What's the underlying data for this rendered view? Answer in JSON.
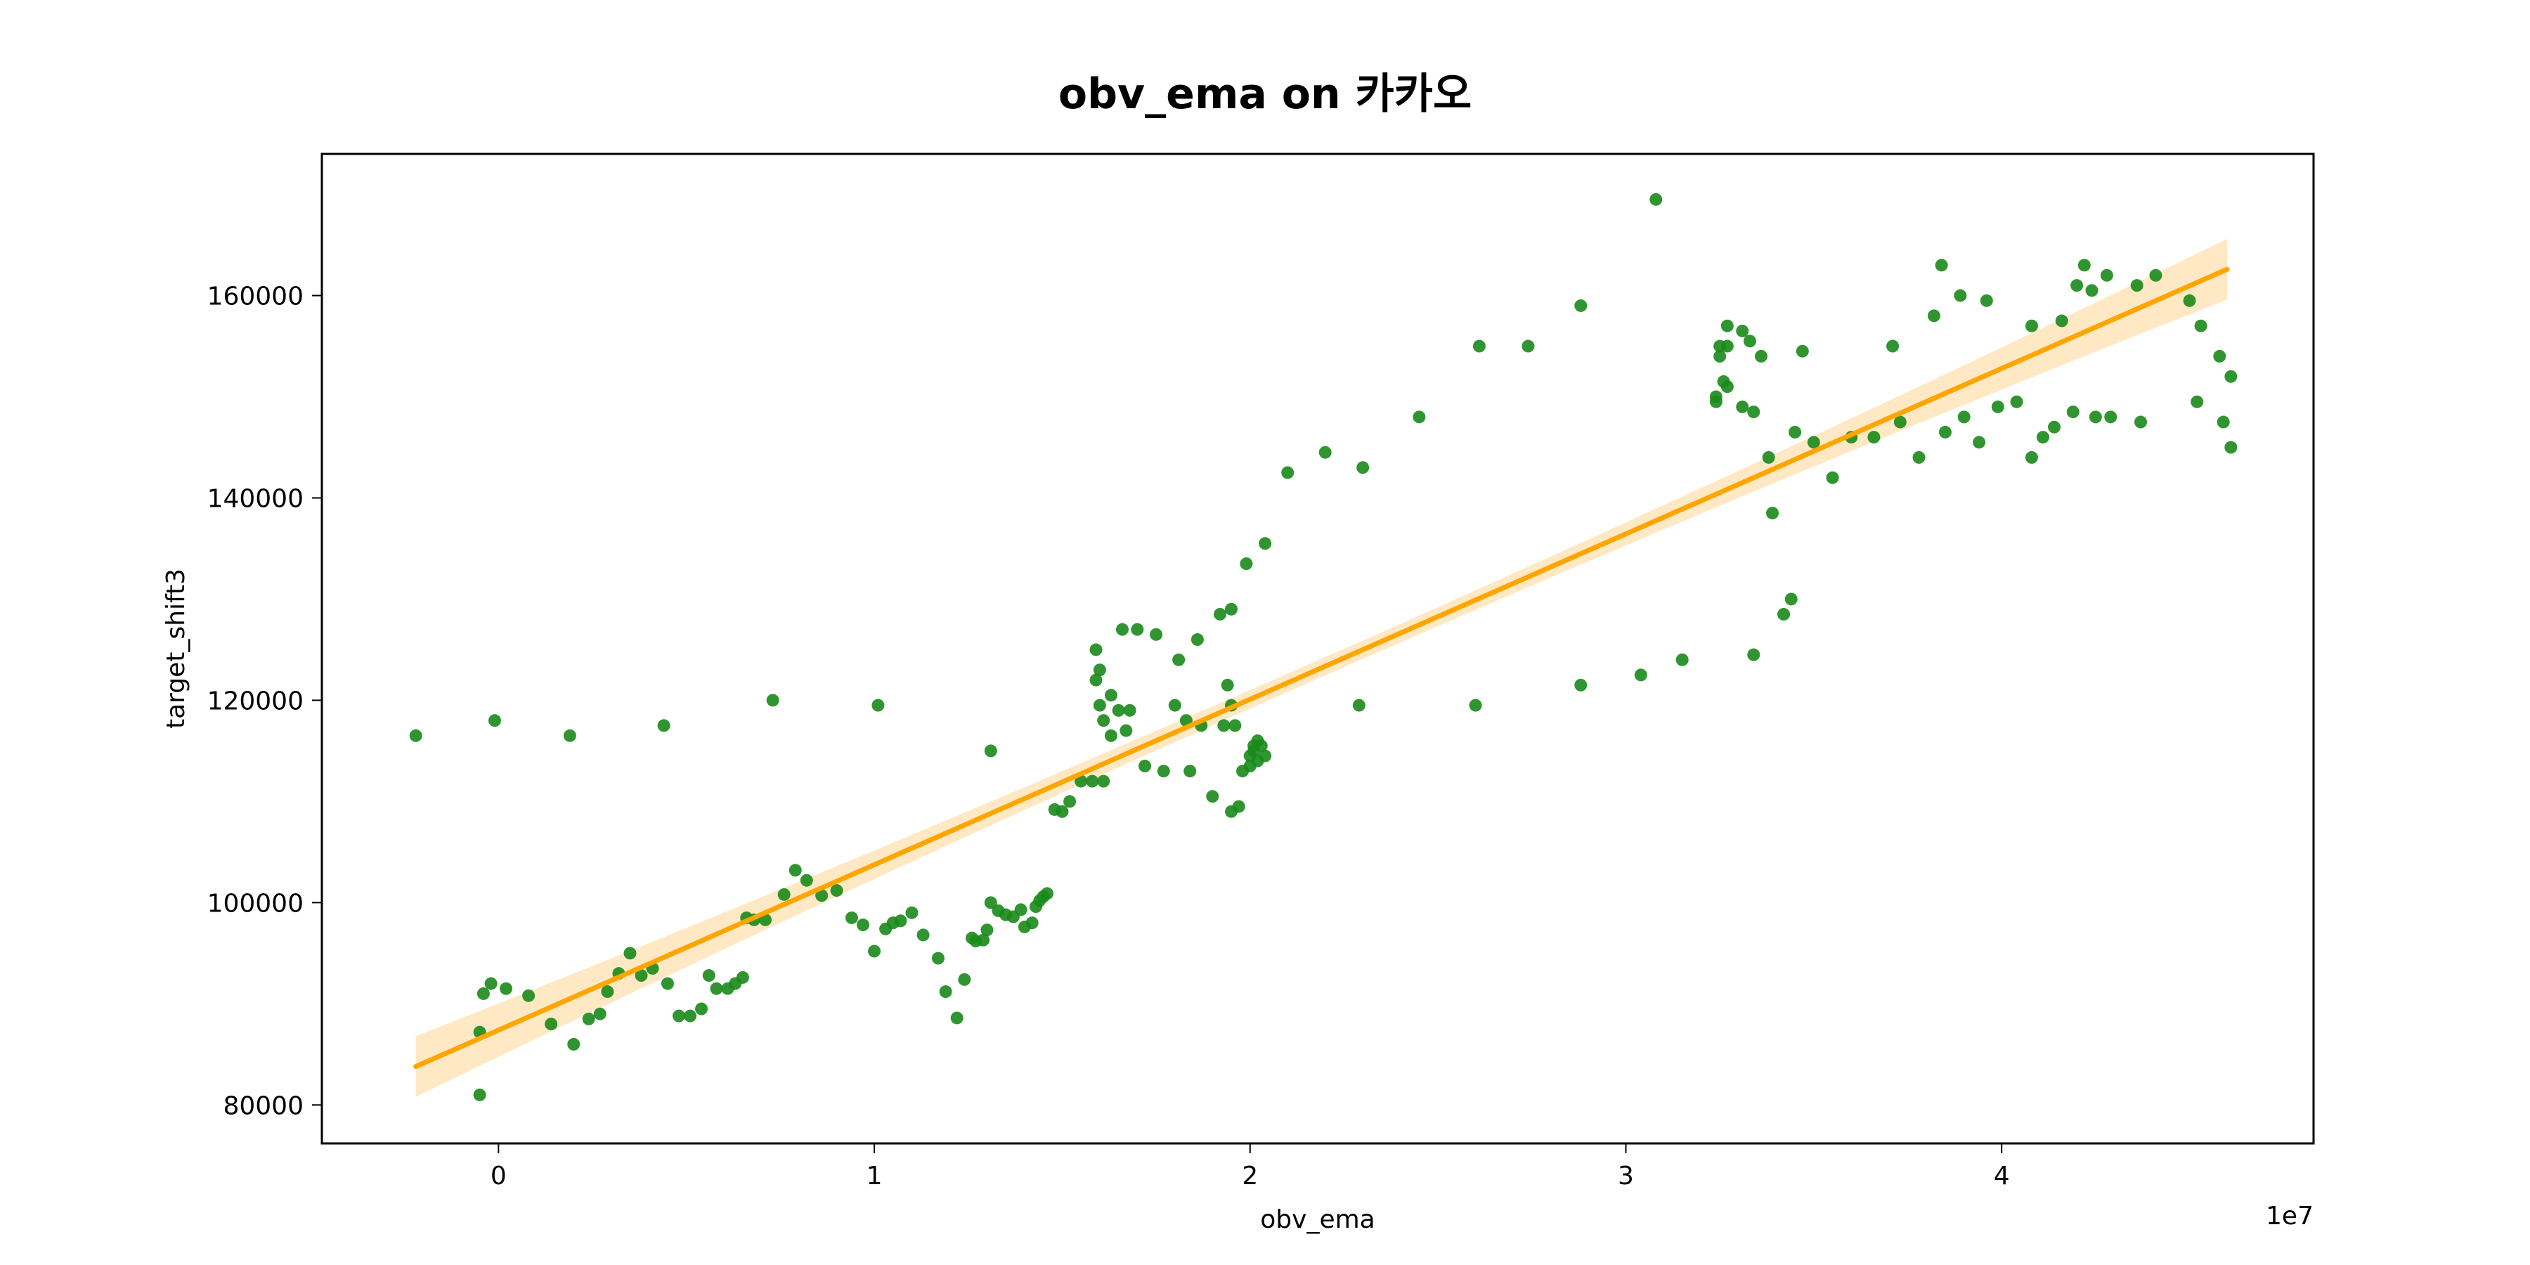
{
  "chart_data": {
    "type": "scatter",
    "title": "obv_ema on 카카오",
    "xlabel": "obv_ema",
    "ylabel": "target_shift3",
    "x_offset_label": "1e7",
    "x_ticks": [
      0,
      1,
      2,
      3,
      4
    ],
    "x_tick_labels": [
      "0",
      "1",
      "2",
      "3",
      "4"
    ],
    "y_ticks": [
      80000,
      100000,
      120000,
      140000,
      160000
    ],
    "y_tick_labels": [
      "80000",
      "100000",
      "120000",
      "140000",
      "160000"
    ],
    "xlim": [
      -0.47,
      4.83
    ],
    "ylim": [
      76200,
      174000
    ],
    "grid": false,
    "colors": {
      "points": "#1a8a1a",
      "regression_line": "#ffa500",
      "confidence_band": "#ffe2b0",
      "axes": "#000000"
    },
    "regression": {
      "x": [
        -0.22,
        4.6
      ],
      "y": [
        83800,
        162600
      ],
      "ci_half_width_ends": 3000,
      "ci_half_width_center": 900
    },
    "points": [
      [
        -0.22,
        116500
      ],
      [
        -0.01,
        118000
      ],
      [
        0.19,
        116500
      ],
      [
        0.44,
        117500
      ],
      [
        0.73,
        120000
      ],
      [
        1.01,
        119500
      ],
      [
        -0.05,
        81000
      ],
      [
        -0.05,
        87200
      ],
      [
        -0.04,
        91000
      ],
      [
        -0.02,
        92000
      ],
      [
        0.02,
        91500
      ],
      [
        0.08,
        90800
      ],
      [
        0.14,
        88000
      ],
      [
        0.2,
        86000
      ],
      [
        0.24,
        88500
      ],
      [
        0.27,
        89000
      ],
      [
        0.29,
        91200
      ],
      [
        0.32,
        93000
      ],
      [
        0.35,
        95000
      ],
      [
        0.38,
        92800
      ],
      [
        0.41,
        93500
      ],
      [
        0.45,
        92000
      ],
      [
        0.48,
        88800
      ],
      [
        0.51,
        88800
      ],
      [
        0.54,
        89500
      ],
      [
        0.56,
        92800
      ],
      [
        0.58,
        91500
      ],
      [
        0.61,
        91500
      ],
      [
        0.63,
        92000
      ],
      [
        0.65,
        92600
      ],
      [
        0.66,
        98500
      ],
      [
        0.68,
        98300
      ],
      [
        0.71,
        98300
      ],
      [
        0.76,
        100800
      ],
      [
        0.79,
        103200
      ],
      [
        0.82,
        102200
      ],
      [
        0.86,
        100700
      ],
      [
        0.9,
        101200
      ],
      [
        0.94,
        98500
      ],
      [
        0.97,
        97800
      ],
      [
        1.0,
        95200
      ],
      [
        1.03,
        97400
      ],
      [
        1.05,
        98000
      ],
      [
        1.07,
        98200
      ],
      [
        1.1,
        99000
      ],
      [
        1.13,
        96800
      ],
      [
        1.17,
        94500
      ],
      [
        1.19,
        91200
      ],
      [
        1.22,
        88600
      ],
      [
        1.24,
        92400
      ],
      [
        1.26,
        96500
      ],
      [
        1.27,
        96200
      ],
      [
        1.29,
        96300
      ],
      [
        1.3,
        97300
      ],
      [
        1.31,
        100000
      ],
      [
        1.33,
        99200
      ],
      [
        1.35,
        98800
      ],
      [
        1.37,
        98600
      ],
      [
        1.39,
        99300
      ],
      [
        1.4,
        97600
      ],
      [
        1.42,
        98000
      ],
      [
        1.43,
        99600
      ],
      [
        1.44,
        100200
      ],
      [
        1.45,
        100600
      ],
      [
        1.46,
        100900
      ],
      [
        1.31,
        115000
      ],
      [
        1.48,
        109200
      ],
      [
        1.5,
        109000
      ],
      [
        1.52,
        110000
      ],
      [
        1.55,
        112000
      ],
      [
        1.58,
        112000
      ],
      [
        1.61,
        112000
      ],
      [
        1.59,
        125000
      ],
      [
        1.59,
        122000
      ],
      [
        1.6,
        123000
      ],
      [
        1.6,
        119500
      ],
      [
        1.61,
        118000
      ],
      [
        1.63,
        120500
      ],
      [
        1.63,
        116500
      ],
      [
        1.65,
        119000
      ],
      [
        1.66,
        127000
      ],
      [
        1.67,
        117000
      ],
      [
        1.68,
        119000
      ],
      [
        1.7,
        127000
      ],
      [
        1.72,
        113500
      ],
      [
        1.75,
        126500
      ],
      [
        1.77,
        113000
      ],
      [
        1.8,
        119500
      ],
      [
        1.81,
        124000
      ],
      [
        1.83,
        118000
      ],
      [
        1.84,
        113000
      ],
      [
        1.86,
        126000
      ],
      [
        1.87,
        117500
      ],
      [
        1.9,
        110500
      ],
      [
        1.92,
        128500
      ],
      [
        1.93,
        117500
      ],
      [
        1.94,
        121500
      ],
      [
        1.95,
        129000
      ],
      [
        1.95,
        119500
      ],
      [
        1.95,
        109000
      ],
      [
        1.96,
        117500
      ],
      [
        1.97,
        109500
      ],
      [
        1.98,
        113000
      ],
      [
        1.99,
        133500
      ],
      [
        2.0,
        113500
      ],
      [
        2.0,
        114500
      ],
      [
        2.01,
        115500
      ],
      [
        2.01,
        115000
      ],
      [
        2.02,
        114000
      ],
      [
        2.02,
        116000
      ],
      [
        2.03,
        115500
      ],
      [
        2.04,
        114500
      ],
      [
        2.04,
        135500
      ],
      [
        2.1,
        142500
      ],
      [
        2.2,
        144500
      ],
      [
        2.29,
        119500
      ],
      [
        2.3,
        143000
      ],
      [
        2.45,
        148000
      ],
      [
        2.6,
        119500
      ],
      [
        2.61,
        155000
      ],
      [
        2.74,
        155000
      ],
      [
        2.88,
        159000
      ],
      [
        2.88,
        121500
      ],
      [
        3.04,
        122500
      ],
      [
        3.08,
        169500
      ],
      [
        3.15,
        124000
      ],
      [
        3.24,
        150000
      ],
      [
        3.24,
        149500
      ],
      [
        3.25,
        155000
      ],
      [
        3.25,
        154000
      ],
      [
        3.26,
        151500
      ],
      [
        3.27,
        155000
      ],
      [
        3.27,
        151000
      ],
      [
        3.27,
        157000
      ],
      [
        3.31,
        156500
      ],
      [
        3.31,
        149000
      ],
      [
        3.33,
        155500
      ],
      [
        3.34,
        148500
      ],
      [
        3.34,
        124500
      ],
      [
        3.36,
        154000
      ],
      [
        3.38,
        144000
      ],
      [
        3.39,
        138500
      ],
      [
        3.42,
        128500
      ],
      [
        3.44,
        130000
      ],
      [
        3.45,
        146500
      ],
      [
        3.47,
        154500
      ],
      [
        3.5,
        145500
      ],
      [
        3.55,
        142000
      ],
      [
        3.6,
        146000
      ],
      [
        3.66,
        146000
      ],
      [
        3.71,
        155000
      ],
      [
        3.73,
        147500
      ],
      [
        3.78,
        144000
      ],
      [
        3.82,
        158000
      ],
      [
        3.84,
        163000
      ],
      [
        3.85,
        146500
      ],
      [
        3.89,
        160000
      ],
      [
        3.9,
        148000
      ],
      [
        3.94,
        145500
      ],
      [
        3.96,
        159500
      ],
      [
        3.99,
        149000
      ],
      [
        4.04,
        149500
      ],
      [
        4.08,
        157000
      ],
      [
        4.08,
        144000
      ],
      [
        4.11,
        146000
      ],
      [
        4.14,
        147000
      ],
      [
        4.16,
        157500
      ],
      [
        4.19,
        148500
      ],
      [
        4.2,
        161000
      ],
      [
        4.22,
        163000
      ],
      [
        4.24,
        160500
      ],
      [
        4.25,
        148000
      ],
      [
        4.28,
        162000
      ],
      [
        4.29,
        148000
      ],
      [
        4.36,
        161000
      ],
      [
        4.37,
        147500
      ],
      [
        4.41,
        162000
      ],
      [
        4.5,
        159500
      ],
      [
        4.52,
        149500
      ],
      [
        4.53,
        157000
      ],
      [
        4.58,
        154000
      ],
      [
        4.59,
        147500
      ],
      [
        4.61,
        152000
      ],
      [
        4.61,
        145000
      ]
    ]
  }
}
